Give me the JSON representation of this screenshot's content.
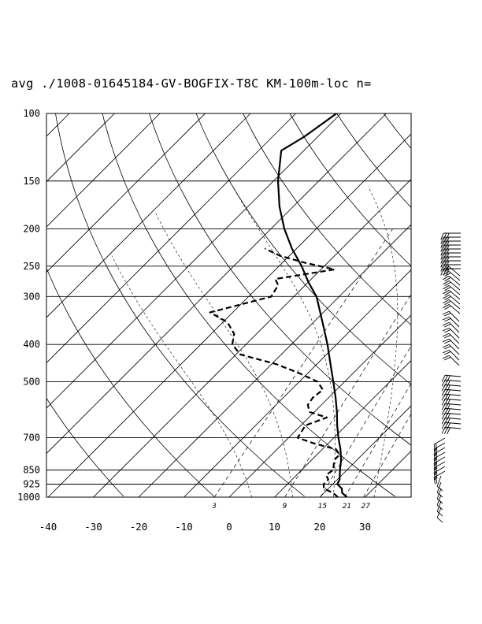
{
  "title": "avg ./1008-01645184-GV-BOGFIX-T8C KM-100m-loc n=",
  "chart_data": {
    "type": "skew-t log-p sounding",
    "pressure_levels_hPa": [
      100,
      150,
      200,
      250,
      300,
      400,
      500,
      700,
      850,
      925,
      1000
    ],
    "pressure_labels": [
      "100",
      "150",
      "200",
      "250",
      "300",
      "400",
      "500",
      "700",
      "850",
      "925",
      "1000"
    ],
    "temperature_ticks_C": [
      -40,
      -30,
      -20,
      -10,
      0,
      10,
      20,
      30
    ],
    "temperature_labels": [
      "-40",
      "-30",
      "-20",
      "-10",
      "0",
      "10",
      "20",
      "30"
    ],
    "mixing_ratio_labels": [
      "3",
      "9",
      "15",
      "21",
      "27"
    ],
    "xlim_C": [
      -40,
      40
    ],
    "ylim_hPa": [
      1000,
      100
    ],
    "temperature_profile": [
      {
        "p": 1000,
        "t": 26
      },
      {
        "p": 975,
        "t": 24
      },
      {
        "p": 950,
        "t": 23
      },
      {
        "p": 925,
        "t": 21
      },
      {
        "p": 900,
        "t": 20.5
      },
      {
        "p": 875,
        "t": 19.5
      },
      {
        "p": 850,
        "t": 18.5
      },
      {
        "p": 800,
        "t": 16.5
      },
      {
        "p": 750,
        "t": 14
      },
      {
        "p": 700,
        "t": 11
      },
      {
        "p": 650,
        "t": 8
      },
      {
        "p": 600,
        "t": 5
      },
      {
        "p": 550,
        "t": 1.5
      },
      {
        "p": 500,
        "t": -2.5
      },
      {
        "p": 450,
        "t": -7
      },
      {
        "p": 400,
        "t": -12
      },
      {
        "p": 350,
        "t": -18
      },
      {
        "p": 300,
        "t": -25
      },
      {
        "p": 275,
        "t": -30
      },
      {
        "p": 250,
        "t": -35
      },
      {
        "p": 225,
        "t": -41
      },
      {
        "p": 200,
        "t": -47
      },
      {
        "p": 175,
        "t": -53
      },
      {
        "p": 150,
        "t": -59
      },
      {
        "p": 125,
        "t": -65
      },
      {
        "p": 115,
        "t": -63
      },
      {
        "p": 100,
        "t": -61
      }
    ],
    "dewpoint_profile": [
      {
        "p": 1000,
        "t": 24
      },
      {
        "p": 975,
        "t": 22
      },
      {
        "p": 950,
        "t": 19
      },
      {
        "p": 925,
        "t": 18
      },
      {
        "p": 900,
        "t": 18
      },
      {
        "p": 875,
        "t": 16.5
      },
      {
        "p": 850,
        "t": 17
      },
      {
        "p": 800,
        "t": 15
      },
      {
        "p": 775,
        "t": 15
      },
      {
        "p": 750,
        "t": 13
      },
      {
        "p": 725,
        "t": 7
      },
      {
        "p": 700,
        "t": 2
      },
      {
        "p": 650,
        "t": 1
      },
      {
        "p": 620,
        "t": 4
      },
      {
        "p": 600,
        "t": -1
      },
      {
        "p": 575,
        "t": -3
      },
      {
        "p": 550,
        "t": -3.5
      },
      {
        "p": 525,
        "t": -3
      },
      {
        "p": 500,
        "t": -6
      },
      {
        "p": 475,
        "t": -12
      },
      {
        "p": 450,
        "t": -19
      },
      {
        "p": 425,
        "t": -29
      },
      {
        "p": 400,
        "t": -33
      },
      {
        "p": 375,
        "t": -35
      },
      {
        "p": 350,
        "t": -39
      },
      {
        "p": 330,
        "t": -45
      },
      {
        "p": 300,
        "t": -35
      },
      {
        "p": 280,
        "t": -36
      },
      {
        "p": 270,
        "t": -38
      },
      {
        "p": 255,
        "t": -27
      },
      {
        "p": 245,
        "t": -35
      },
      {
        "p": 235,
        "t": -42
      },
      {
        "p": 225,
        "t": -47
      }
    ]
  }
}
